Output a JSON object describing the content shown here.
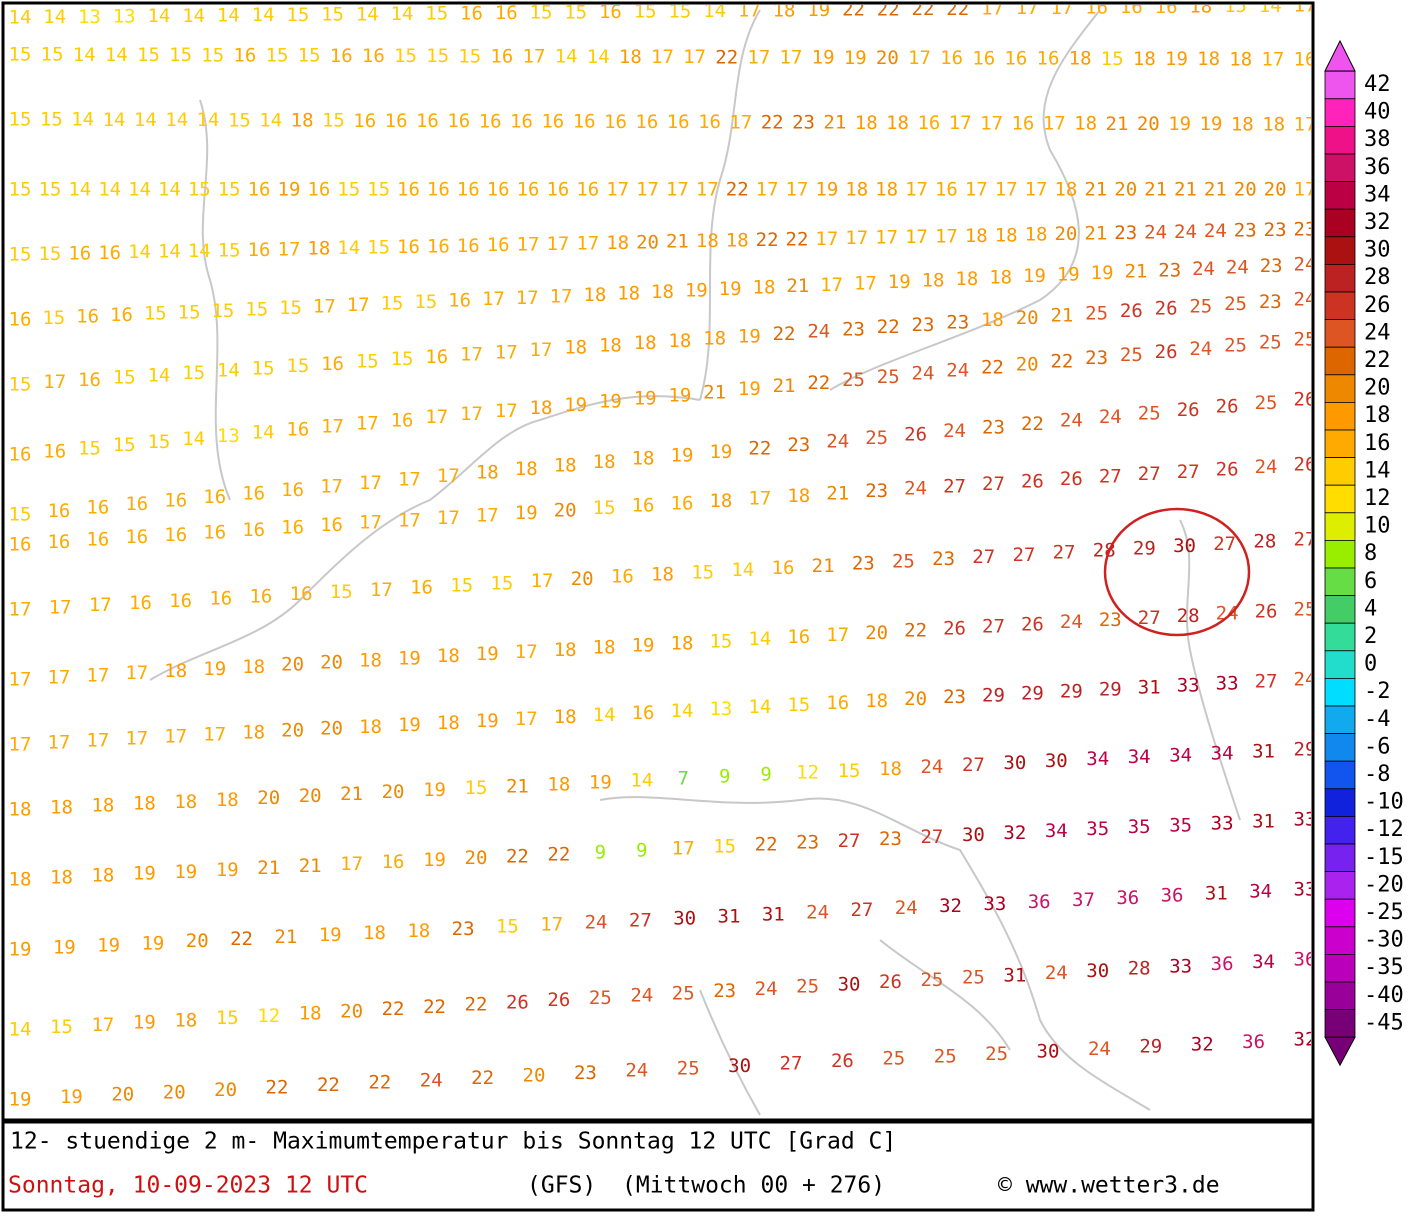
{
  "map": {
    "rows": [
      [
        14,
        14,
        13,
        13,
        14,
        14,
        14,
        14,
        15,
        15,
        14,
        14,
        15,
        16,
        16,
        15,
        15,
        16,
        15,
        15,
        14,
        17,
        18,
        19,
        22,
        22,
        22,
        22,
        17,
        17,
        17,
        16,
        16,
        16,
        18,
        15,
        14,
        17
      ],
      [
        15,
        15,
        14,
        14,
        15,
        15,
        15,
        16,
        15,
        15,
        16,
        16,
        15,
        15,
        15,
        16,
        17,
        14,
        14,
        18,
        17,
        17,
        22,
        17,
        17,
        19,
        19,
        20,
        17,
        16,
        16,
        16,
        16,
        18,
        15,
        18,
        19,
        18,
        18,
        17,
        16
      ],
      [
        15,
        15,
        14,
        14,
        14,
        14,
        14,
        15,
        14,
        18,
        15,
        16,
        16,
        16,
        16,
        16,
        16,
        16,
        16,
        16,
        16,
        16,
        16,
        17,
        22,
        23,
        21,
        18,
        18,
        16,
        17,
        17,
        16,
        17,
        18,
        21,
        20,
        19,
        19,
        18,
        18,
        17
      ],
      [
        15,
        15,
        14,
        14,
        14,
        14,
        15,
        15,
        16,
        19,
        16,
        15,
        15,
        16,
        16,
        16,
        16,
        16,
        16,
        16,
        17,
        17,
        17,
        17,
        22,
        17,
        17,
        19,
        18,
        18,
        17,
        16,
        17,
        17,
        17,
        18,
        21,
        20,
        21,
        21,
        21,
        20,
        20,
        17
      ],
      [
        15,
        15,
        16,
        16,
        14,
        14,
        14,
        15,
        16,
        17,
        18,
        14,
        15,
        16,
        16,
        16,
        16,
        17,
        17,
        17,
        18,
        20,
        21,
        18,
        18,
        22,
        22,
        17,
        17,
        17,
        17,
        17,
        18,
        18,
        18,
        20,
        21,
        23,
        24,
        24,
        24,
        23,
        23,
        23
      ],
      [
        16,
        15,
        16,
        16,
        15,
        15,
        15,
        15,
        15,
        17,
        17,
        15,
        15,
        16,
        17,
        17,
        17,
        18,
        18,
        18,
        19,
        19,
        18,
        21,
        17,
        17,
        19,
        18,
        18,
        18,
        19,
        19,
        19,
        21,
        23,
        24,
        24,
        23,
        24
      ],
      [
        15,
        17,
        16,
        15,
        14,
        15,
        14,
        15,
        15,
        16,
        15,
        15,
        16,
        17,
        17,
        17,
        18,
        18,
        18,
        18,
        18,
        19,
        22,
        24,
        23,
        22,
        23,
        23,
        18,
        20,
        21,
        25,
        26,
        26,
        25,
        25,
        23,
        24
      ],
      [
        16,
        16,
        15,
        15,
        15,
        14,
        13,
        14,
        16,
        17,
        17,
        16,
        17,
        17,
        17,
        18,
        19,
        19,
        19,
        19,
        21,
        19,
        21,
        22,
        25,
        25,
        24,
        24,
        22,
        20,
        22,
        23,
        25,
        26,
        24,
        25,
        25,
        25
      ],
      [
        15,
        16,
        16,
        16,
        16,
        16,
        16,
        16,
        17,
        17,
        17,
        17,
        18,
        18,
        18,
        18,
        18,
        19,
        19,
        22,
        23,
        24,
        25,
        26,
        24,
        23,
        22,
        24,
        24,
        25,
        26,
        26,
        25,
        26
      ],
      [
        16,
        16,
        16,
        16,
        16,
        16,
        16,
        16,
        16,
        17,
        17,
        17,
        17,
        19,
        20,
        15,
        16,
        16,
        18,
        17,
        18,
        21,
        23,
        24,
        27,
        27,
        26,
        26,
        27,
        27,
        27,
        26,
        24,
        26
      ],
      [
        17,
        17,
        17,
        16,
        16,
        16,
        16,
        16,
        15,
        17,
        16,
        15,
        15,
        17,
        20,
        16,
        18,
        15,
        14,
        16,
        21,
        23,
        25,
        23,
        27,
        27,
        27,
        28,
        29,
        30,
        27,
        28,
        27
      ],
      [
        17,
        17,
        17,
        17,
        18,
        19,
        18,
        20,
        20,
        18,
        19,
        18,
        19,
        17,
        18,
        18,
        19,
        18,
        15,
        14,
        16,
        17,
        20,
        22,
        26,
        27,
        26,
        24,
        23,
        27,
        28,
        24,
        26,
        25
      ],
      [
        17,
        17,
        17,
        17,
        17,
        17,
        18,
        20,
        20,
        18,
        19,
        18,
        19,
        17,
        18,
        14,
        16,
        14,
        13,
        14,
        15,
        16,
        18,
        20,
        23,
        29,
        29,
        29,
        29,
        31,
        33,
        33,
        27,
        24
      ],
      [
        18,
        18,
        18,
        18,
        18,
        18,
        20,
        20,
        21,
        20,
        19,
        15,
        21,
        18,
        19,
        14,
        7,
        9,
        9,
        12,
        15,
        18,
        24,
        27,
        30,
        30,
        34,
        34,
        34,
        34,
        31,
        29
      ],
      [
        18,
        18,
        18,
        19,
        19,
        19,
        21,
        21,
        17,
        16,
        19,
        20,
        22,
        22,
        9,
        9,
        17,
        15,
        22,
        23,
        27,
        23,
        27,
        30,
        32,
        34,
        35,
        35,
        35,
        33,
        31,
        33
      ],
      [
        19,
        19,
        19,
        19,
        20,
        22,
        21,
        19,
        18,
        18,
        23,
        15,
        17,
        24,
        27,
        30,
        31,
        31,
        24,
        27,
        24,
        32,
        33,
        36,
        37,
        36,
        36,
        31,
        34,
        33
      ],
      [
        14,
        15,
        17,
        19,
        18,
        15,
        12,
        18,
        20,
        22,
        22,
        22,
        26,
        26,
        25,
        24,
        25,
        23,
        24,
        25,
        30,
        26,
        25,
        25,
        31,
        24,
        30,
        28,
        33,
        36,
        34,
        36
      ],
      [
        19,
        19,
        20,
        20,
        20,
        22,
        22,
        22,
        24,
        22,
        20,
        23,
        24,
        25,
        30,
        27,
        26,
        25,
        25,
        25,
        30,
        24,
        29,
        32,
        36,
        32
      ]
    ]
  },
  "legend": {
    "labels": [
      42,
      40,
      38,
      36,
      34,
      32,
      30,
      28,
      26,
      24,
      22,
      20,
      18,
      16,
      14,
      12,
      10,
      8,
      6,
      4,
      2,
      0,
      -2,
      -4,
      -6,
      -8,
      -10,
      -12,
      -15,
      -20,
      -25,
      -30,
      -35,
      -40,
      -45
    ],
    "colors": [
      "#ee55ee",
      "#ff22bb",
      "#ee1188",
      "#cc1166",
      "#bb0044",
      "#aa0022",
      "#aa1111",
      "#bb2222",
      "#cc3322",
      "#dd5522",
      "#dd6600",
      "#ee8800",
      "#ff9900",
      "#ffaa00",
      "#ffcc00",
      "#ffdd00",
      "#ddee00",
      "#99ee00",
      "#66dd44",
      "#44cc66",
      "#33dd99",
      "#22ddcc",
      "#00ddff",
      "#11aaee",
      "#1188ee",
      "#1155ee",
      "#1122dd",
      "#4422ee",
      "#7722ee",
      "#aa22ee",
      "#dd00ee",
      "#cc00cc",
      "#bb00bb",
      "#990099",
      "#770077"
    ]
  },
  "footer": {
    "title": "12- stuendige 2 m- Maximumtemperatur bis Sonntag 12 UTC [Grad C]",
    "date": "Sonntag, 10-09-2023  12 UTC",
    "model": "(GFS)",
    "run": "(Mittwoch 00 + 276)",
    "credit": "© www.wetter3.de"
  }
}
